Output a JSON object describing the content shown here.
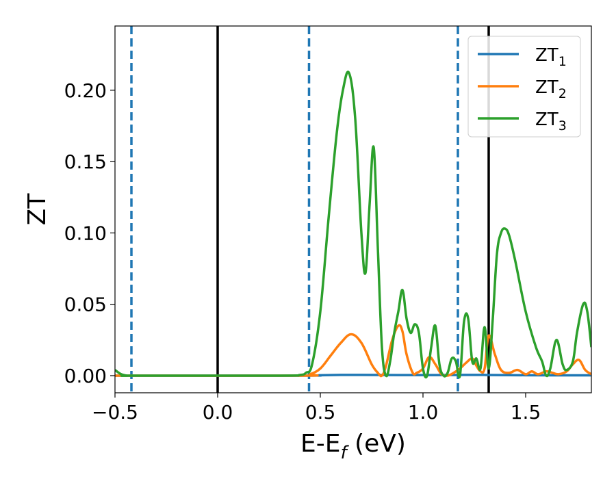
{
  "chart_data": {
    "type": "line",
    "xlabel": "E-E",
    "xlabel_sub": "f",
    "xlabel_unit": " (eV)",
    "ylabel": "ZT",
    "xlim": [
      -0.5,
      1.82
    ],
    "ylim": [
      -0.012,
      0.245
    ],
    "xticks": [
      -0.5,
      0.0,
      0.5,
      1.0,
      1.5
    ],
    "xtick_labels": [
      "−0.5",
      "0.0",
      "0.5",
      "1.0",
      "1.5"
    ],
    "yticks": [
      0.0,
      0.05,
      0.1,
      0.15,
      0.2
    ],
    "ytick_labels": [
      "0.00",
      "0.05",
      "0.10",
      "0.15",
      "0.20"
    ],
    "grid": false,
    "legend_position": "top-right",
    "reference_lines": [
      {
        "x": -0.42,
        "style": "dashed",
        "color": "#1f77b4"
      },
      {
        "x": 0.0,
        "style": "solid",
        "color": "#000000"
      },
      {
        "x": 0.445,
        "style": "dashed",
        "color": "#1f77b4"
      },
      {
        "x": 1.17,
        "style": "dashed",
        "color": "#1f77b4"
      },
      {
        "x": 1.32,
        "style": "solid",
        "color": "#000000"
      }
    ],
    "series": [
      {
        "name": "ZT",
        "sub": "1",
        "color": "#1f77b4",
        "x": [
          -0.5,
          0.4,
          0.5,
          0.6,
          0.7,
          0.9,
          1.1,
          1.2,
          1.3,
          1.5,
          1.82
        ],
        "y": [
          0,
          0,
          0.0003,
          0.0005,
          0.0005,
          0.0004,
          0.0004,
          0.0005,
          0.0005,
          0.0003,
          0.0002
        ]
      },
      {
        "name": "ZT",
        "sub": "2",
        "color": "#ff7f0e",
        "x": [
          -0.5,
          0.4,
          0.45,
          0.5,
          0.55,
          0.6,
          0.65,
          0.7,
          0.75,
          0.78,
          0.8,
          0.82,
          0.85,
          0.88,
          0.9,
          0.92,
          0.95,
          0.97,
          1.0,
          1.03,
          1.06,
          1.09,
          1.12,
          1.15,
          1.18,
          1.21,
          1.24,
          1.26,
          1.28,
          1.3,
          1.32,
          1.35,
          1.38,
          1.42,
          1.46,
          1.5,
          1.53,
          1.56,
          1.6,
          1.63,
          1.66,
          1.7,
          1.73,
          1.76,
          1.79,
          1.82
        ],
        "y": [
          0,
          0,
          0.001,
          0.005,
          0.014,
          0.023,
          0.029,
          0.023,
          0.008,
          0.002,
          0.0,
          0.007,
          0.025,
          0.035,
          0.031,
          0.015,
          0.002,
          0.002,
          0.005,
          0.013,
          0.008,
          0.001,
          0.0,
          0.002,
          0.005,
          0.009,
          0.012,
          0.007,
          0.003,
          0.005,
          0.028,
          0.015,
          0.004,
          0.002,
          0.004,
          0.001,
          0.003,
          0.001,
          0.003,
          0.002,
          0.001,
          0.003,
          0.008,
          0.011,
          0.004,
          0.001
        ]
      },
      {
        "name": "ZT",
        "sub": "3",
        "color": "#2ca02c",
        "x": [
          -0.5,
          -0.47,
          -0.44,
          -0.4,
          0.3,
          0.4,
          0.43,
          0.46,
          0.5,
          0.54,
          0.58,
          0.61,
          0.64,
          0.67,
          0.7,
          0.72,
          0.74,
          0.76,
          0.78,
          0.8,
          0.82,
          0.84,
          0.86,
          0.88,
          0.9,
          0.92,
          0.94,
          0.96,
          0.98,
          1.0,
          1.02,
          1.04,
          1.06,
          1.08,
          1.1,
          1.12,
          1.14,
          1.16,
          1.18,
          1.2,
          1.22,
          1.24,
          1.26,
          1.28,
          1.3,
          1.32,
          1.34,
          1.36,
          1.38,
          1.4,
          1.42,
          1.45,
          1.5,
          1.55,
          1.58,
          1.6,
          1.62,
          1.65,
          1.68,
          1.7,
          1.73,
          1.75,
          1.78,
          1.8,
          1.82
        ],
        "y": [
          0.004,
          0.001,
          0.0,
          0.0,
          0.0,
          0.0005,
          0.002,
          0.008,
          0.045,
          0.11,
          0.17,
          0.2,
          0.212,
          0.18,
          0.1,
          0.072,
          0.12,
          0.16,
          0.09,
          0.02,
          0.0,
          0.01,
          0.03,
          0.045,
          0.06,
          0.04,
          0.03,
          0.036,
          0.03,
          0.005,
          0.0,
          0.02,
          0.035,
          0.008,
          0.0,
          0.002,
          0.012,
          0.01,
          0.0,
          0.038,
          0.04,
          0.01,
          0.012,
          0.005,
          0.034,
          0.005,
          0.04,
          0.085,
          0.1,
          0.103,
          0.098,
          0.08,
          0.045,
          0.02,
          0.01,
          0.0,
          0.005,
          0.025,
          0.008,
          0.004,
          0.01,
          0.03,
          0.05,
          0.045,
          0.02
        ]
      }
    ]
  }
}
